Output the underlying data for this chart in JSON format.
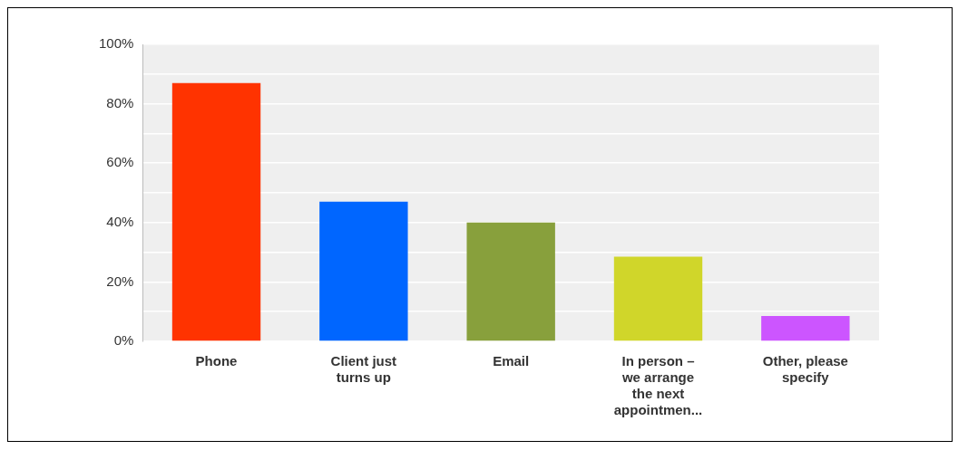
{
  "chart_data": {
    "type": "bar",
    "categories": [
      "Phone",
      "Client just turns up",
      "Email",
      "In person – we arrange the next appointmen...",
      "Other, please specify"
    ],
    "values": [
      87,
      47,
      40,
      28.5,
      8.5
    ],
    "colors": [
      "#ff3300",
      "#0066ff",
      "#88a03c",
      "#d0d62a",
      "#cc55ff"
    ],
    "ylim": [
      0,
      100
    ],
    "yticks": [
      {
        "value": 0,
        "label": "0%"
      },
      {
        "value": 10,
        "label": null
      },
      {
        "value": 20,
        "label": "20%"
      },
      {
        "value": 30,
        "label": null
      },
      {
        "value": 40,
        "label": "40%"
      },
      {
        "value": 50,
        "label": null
      },
      {
        "value": 60,
        "label": "60%"
      },
      {
        "value": 70,
        "label": null
      },
      {
        "value": 80,
        "label": "80%"
      },
      {
        "value": 90,
        "label": null
      },
      {
        "value": 100,
        "label": "100%"
      }
    ],
    "grid": "y",
    "legend": false
  }
}
